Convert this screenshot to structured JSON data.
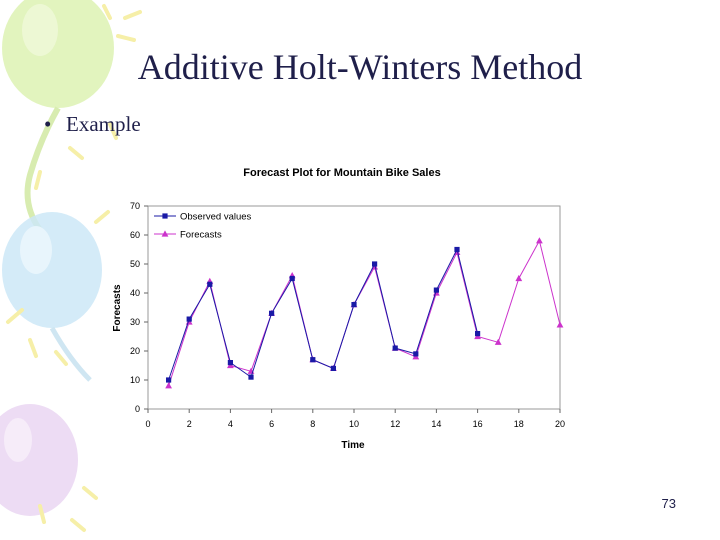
{
  "slide": {
    "title": "Additive Holt-Winters Method",
    "bullet": "Example",
    "page_number": "73"
  },
  "chart_data": {
    "type": "line",
    "title": "Forecast Plot for Mountain Bike Sales",
    "xlabel": "Time",
    "ylabel": "Forecasts",
    "xlim": [
      0,
      20
    ],
    "ylim": [
      0,
      70
    ],
    "x_ticks": [
      0,
      2,
      4,
      6,
      8,
      10,
      12,
      14,
      16,
      18,
      20
    ],
    "y_ticks": [
      0,
      10,
      20,
      30,
      40,
      50,
      60,
      70
    ],
    "grid": false,
    "legend": "top-left",
    "series": [
      {
        "name": "Observed values",
        "color": "#1a1aa6",
        "marker": "square",
        "x": [
          1,
          2,
          3,
          4,
          5,
          6,
          7,
          8,
          9,
          10,
          11,
          12,
          13,
          14,
          15,
          16
        ],
        "values": [
          10,
          31,
          43,
          16,
          11,
          33,
          45,
          17,
          14,
          36,
          50,
          21,
          19,
          41,
          55,
          26
        ]
      },
      {
        "name": "Forecasts",
        "color": "#cc33cc",
        "marker": "triangle",
        "x": [
          1,
          2,
          3,
          4,
          5,
          6,
          7,
          8,
          9,
          10,
          11,
          12,
          13,
          14,
          15,
          16,
          17,
          18,
          19,
          20
        ],
        "values": [
          8,
          30,
          44,
          15,
          13,
          33,
          46,
          17,
          14,
          36,
          49,
          21,
          18,
          40,
          54,
          25,
          23,
          45,
          58,
          29
        ]
      }
    ]
  }
}
